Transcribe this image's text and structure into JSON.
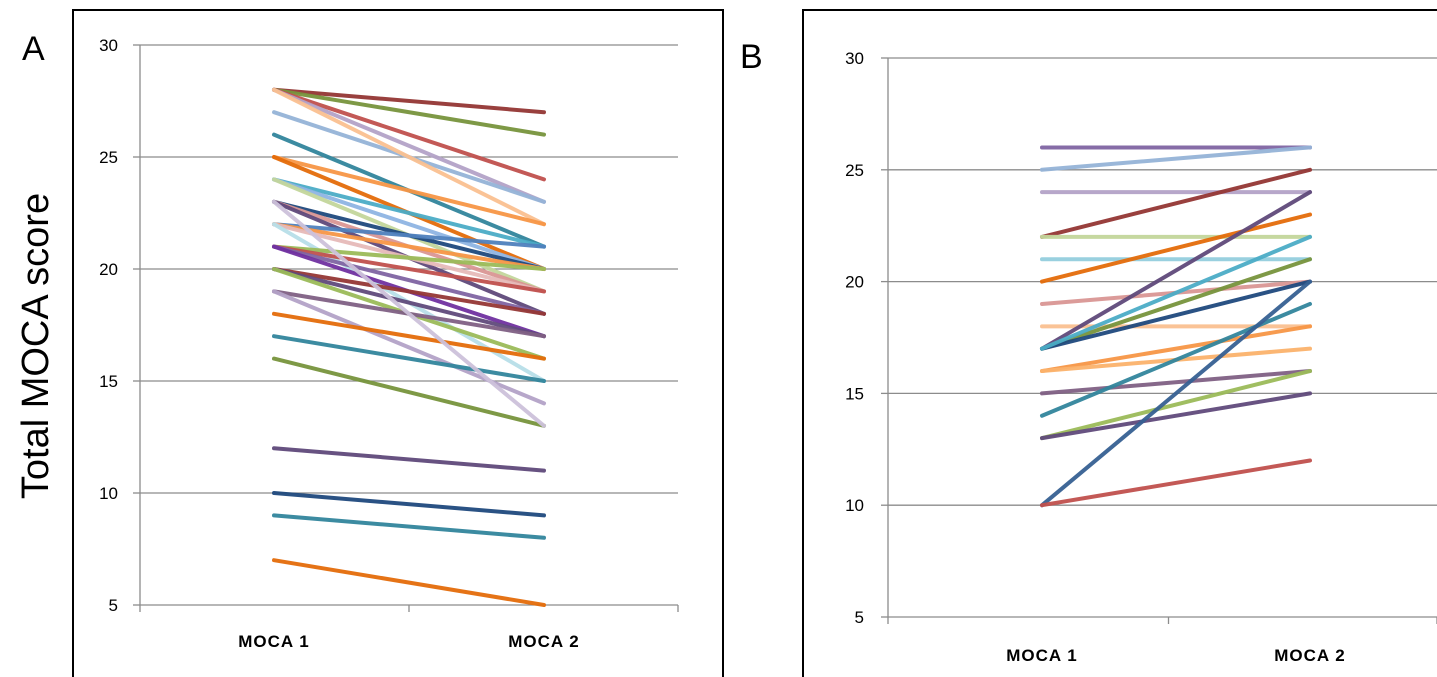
{
  "y_axis_title": "Total MOCA score",
  "chart_data": [
    {
      "panel": "A",
      "type": "line",
      "categories": [
        "MOCA 1",
        "MOCA 2"
      ],
      "ylim": [
        5,
        30
      ],
      "yticks": [
        5,
        10,
        15,
        20,
        25,
        30
      ],
      "grid": true,
      "series": [
        {
          "values": [
            28,
            27
          ],
          "color": "#943634"
        },
        {
          "values": [
            28,
            26
          ],
          "color": "#77933c"
        },
        {
          "values": [
            28,
            24
          ],
          "color": "#c0504d"
        },
        {
          "values": [
            28,
            23
          ],
          "color": "#b3a2c7"
        },
        {
          "values": [
            27,
            23
          ],
          "color": "#95b3d7"
        },
        {
          "values": [
            28,
            22
          ],
          "color": "#fac090"
        },
        {
          "values": [
            26,
            21
          ],
          "color": "#31859c"
        },
        {
          "values": [
            25,
            22
          ],
          "color": "#f79646"
        },
        {
          "values": [
            25,
            20
          ],
          "color": "#e46c0a"
        },
        {
          "values": [
            24,
            21
          ],
          "color": "#4bacc6"
        },
        {
          "values": [
            24,
            20
          ],
          "color": "#8eb4e3"
        },
        {
          "values": [
            24,
            19
          ],
          "color": "#c3d69b"
        },
        {
          "values": [
            23,
            20
          ],
          "color": "#1f497d"
        },
        {
          "values": [
            23,
            19
          ],
          "color": "#d99694"
        },
        {
          "values": [
            23,
            18
          ],
          "color": "#5f497a"
        },
        {
          "values": [
            22,
            21
          ],
          "color": "#4f81bd"
        },
        {
          "values": [
            22,
            20
          ],
          "color": "#f79646"
        },
        {
          "values": [
            22,
            19
          ],
          "color": "#e6b9b8"
        },
        {
          "values": [
            22,
            15
          ],
          "color": "#b7dee8"
        },
        {
          "values": [
            21,
            20
          ],
          "color": "#9bbb59"
        },
        {
          "values": [
            21,
            19
          ],
          "color": "#c0504d"
        },
        {
          "values": [
            21,
            18
          ],
          "color": "#8064a2"
        },
        {
          "values": [
            21,
            17
          ],
          "color": "#7030a0"
        },
        {
          "values": [
            20,
            18
          ],
          "color": "#953735"
        },
        {
          "values": [
            20,
            17
          ],
          "color": "#604a7b"
        },
        {
          "values": [
            20,
            16
          ],
          "color": "#9bbb59"
        },
        {
          "values": [
            19,
            17
          ],
          "color": "#7f6084"
        },
        {
          "values": [
            19,
            14
          ],
          "color": "#b3a2c7"
        },
        {
          "values": [
            18,
            16
          ],
          "color": "#e46c0a"
        },
        {
          "values": [
            17,
            15
          ],
          "color": "#31859c"
        },
        {
          "values": [
            16,
            13
          ],
          "color": "#77933c"
        },
        {
          "values": [
            23,
            13
          ],
          "color": "#ccc1da"
        },
        {
          "values": [
            12,
            11
          ],
          "color": "#5f497a"
        },
        {
          "values": [
            10,
            9
          ],
          "color": "#1f497d"
        },
        {
          "values": [
            9,
            8
          ],
          "color": "#31859c"
        },
        {
          "values": [
            7,
            5
          ],
          "color": "#e46c0a"
        }
      ]
    },
    {
      "panel": "B",
      "type": "line",
      "categories": [
        "MOCA 1",
        "MOCA 2"
      ],
      "ylim": [
        5,
        30
      ],
      "yticks": [
        5,
        10,
        15,
        20,
        25,
        30
      ],
      "grid": true,
      "series": [
        {
          "values": [
            26,
            26
          ],
          "color": "#8064a2"
        },
        {
          "values": [
            25,
            26
          ],
          "color": "#95b3d7"
        },
        {
          "values": [
            24,
            24
          ],
          "color": "#b3a2c7"
        },
        {
          "values": [
            22,
            25
          ],
          "color": "#943634"
        },
        {
          "values": [
            22,
            22
          ],
          "color": "#c3d69b"
        },
        {
          "values": [
            21,
            21
          ],
          "color": "#93cddd"
        },
        {
          "values": [
            20,
            23
          ],
          "color": "#e46c0a"
        },
        {
          "values": [
            19,
            20
          ],
          "color": "#d99694"
        },
        {
          "values": [
            18,
            18
          ],
          "color": "#fac090"
        },
        {
          "values": [
            17,
            24
          ],
          "color": "#5f497a"
        },
        {
          "values": [
            17,
            21
          ],
          "color": "#77933c"
        },
        {
          "values": [
            17,
            20
          ],
          "color": "#1f497d"
        },
        {
          "values": [
            17,
            22
          ],
          "color": "#4bacc6"
        },
        {
          "values": [
            16,
            18
          ],
          "color": "#f79646"
        },
        {
          "values": [
            16,
            17
          ],
          "color": "#fbb26c"
        },
        {
          "values": [
            15,
            16
          ],
          "color": "#7f6084"
        },
        {
          "values": [
            14,
            19
          ],
          "color": "#31859c"
        },
        {
          "values": [
            13,
            16
          ],
          "color": "#9bbb59"
        },
        {
          "values": [
            13,
            15
          ],
          "color": "#604a7b"
        },
        {
          "values": [
            10,
            20
          ],
          "color": "#366092"
        },
        {
          "values": [
            10,
            12
          ],
          "color": "#c0504d"
        }
      ]
    }
  ]
}
